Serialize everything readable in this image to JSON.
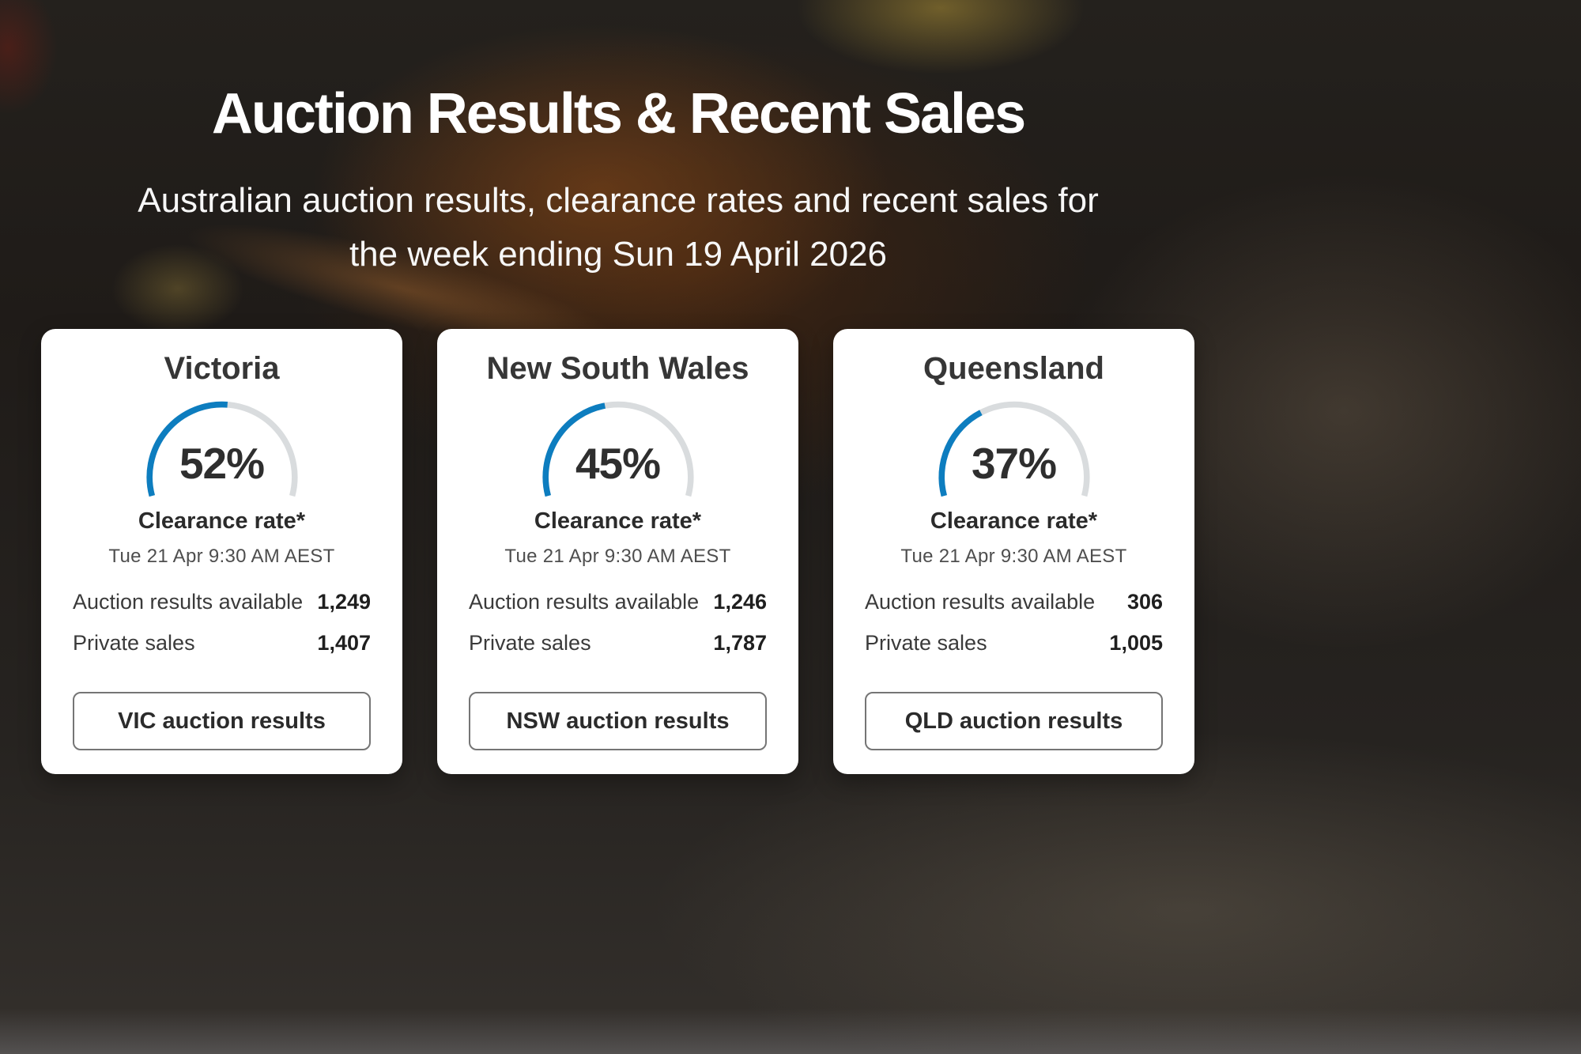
{
  "hero": {
    "title": "Auction Results & Recent Sales",
    "subtitle": "Australian auction results, clearance rates and recent sales for the week ending Sun 19 April 2026"
  },
  "colors": {
    "accent_blue": "#0d7dbf",
    "gauge_track": "#d9dcde"
  },
  "cards": [
    {
      "state": "Victoria",
      "clearance_display": "52%",
      "gauge_label": "Clearance rate*",
      "timestamp": "Tue 21 Apr 9:30 AM AEST",
      "rows": [
        {
          "label": "Auction results available",
          "value": "1,249"
        },
        {
          "label": "Private sales",
          "value": "1,407"
        }
      ],
      "button_label": "VIC auction results"
    },
    {
      "state": "New South Wales",
      "clearance_display": "45%",
      "gauge_label": "Clearance rate*",
      "timestamp": "Tue 21 Apr 9:30 AM AEST",
      "rows": [
        {
          "label": "Auction results available",
          "value": "1,246"
        },
        {
          "label": "Private sales",
          "value": "1,787"
        }
      ],
      "button_label": "NSW auction results"
    },
    {
      "state": "Queensland",
      "clearance_display": "37%",
      "gauge_label": "Clearance rate*",
      "timestamp": "Tue 21 Apr 9:30 AM AEST",
      "rows": [
        {
          "label": "Auction results available",
          "value": "306"
        },
        {
          "label": "Private sales",
          "value": "1,005"
        }
      ],
      "button_label": "QLD auction results"
    }
  ],
  "chart_data": [
    {
      "type": "gauge",
      "title": "Victoria clearance rate",
      "value": 52,
      "unit": "%",
      "min": 0,
      "max": 100
    },
    {
      "type": "gauge",
      "title": "New South Wales clearance rate",
      "value": 45,
      "unit": "%",
      "min": 0,
      "max": 100
    },
    {
      "type": "gauge",
      "title": "Queensland clearance rate",
      "value": 37,
      "unit": "%",
      "min": 0,
      "max": 100
    }
  ]
}
